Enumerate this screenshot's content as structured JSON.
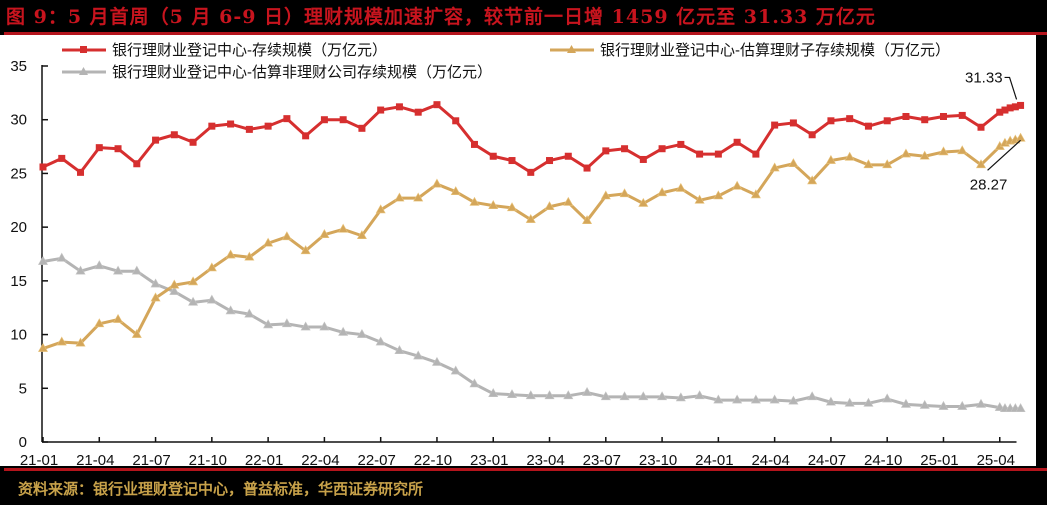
{
  "title": "图 9：5 月首周（5 月 6-9 日）理财规模加速扩容，较节前一日增 1459 亿元至 31.33 万亿元",
  "source": "资料来源：银行业理财登记中心，普益标准，华西证券研究所",
  "colors": {
    "title": "#c8141e",
    "rule": "#b4141c",
    "source": "#c8a24a",
    "series_total": "#d62f2f",
    "series_subsidiary": "#d4a65a",
    "series_non_subsidiary": "#b4b4b4"
  },
  "legend": [
    {
      "label": "银行理财业登记中心-存续规模（万亿元）",
      "marker": "square",
      "color": "#d62f2f"
    },
    {
      "label": "银行理财业登记中心-估算理财子存续规模（万亿元）",
      "marker": "triangle",
      "color": "#d4a65a"
    },
    {
      "label": "银行理财业登记中心-估算非理财公司存续规模（万亿元）",
      "marker": "triangle",
      "color": "#b4b4b4"
    }
  ],
  "annotations": [
    {
      "text": "31.33",
      "series": "total"
    },
    {
      "text": "28.27",
      "series": "subsidiary"
    }
  ],
  "chart_data": {
    "type": "line",
    "title": "图 9：5 月首周（5 月 6-9 日）理财规模加速扩容，较节前一日增 1459 亿元至 31.33 万亿元",
    "xlabel": "",
    "ylabel": "",
    "ylim": [
      0,
      35
    ],
    "yticks": [
      0,
      5,
      10,
      15,
      20,
      25,
      30,
      35
    ],
    "xtick_labels": [
      "21-01",
      "21-04",
      "21-07",
      "21-10",
      "22-01",
      "22-04",
      "22-07",
      "22-10",
      "23-01",
      "23-04",
      "23-07",
      "23-10",
      "24-01",
      "24-04",
      "24-07",
      "24-10",
      "25-01",
      "25-04"
    ],
    "grid": false,
    "legend_position": "top",
    "x": [
      "21-01",
      "21-02",
      "21-03",
      "21-04",
      "21-05",
      "21-06",
      "21-07",
      "21-08",
      "21-09",
      "21-10",
      "21-11",
      "21-12",
      "22-01",
      "22-02",
      "22-03",
      "22-04",
      "22-05",
      "22-06",
      "22-07",
      "22-08",
      "22-09",
      "22-10",
      "22-11",
      "22-12",
      "23-01",
      "23-02",
      "23-03",
      "23-04",
      "23-05",
      "23-06",
      "23-07",
      "23-08",
      "23-09",
      "23-10",
      "23-11",
      "23-12",
      "24-01",
      "24-02",
      "24-03",
      "24-04",
      "24-05",
      "24-06",
      "24-07",
      "24-08",
      "24-09",
      "24-10",
      "24-11",
      "24-12",
      "25-01",
      "25-02",
      "25-03",
      "25-04",
      "25-05-w1",
      "25-05-w2",
      "25-05-w3",
      "25-05-w4"
    ],
    "series": [
      {
        "name": "银行理财业登记中心-存续规模（万亿元）",
        "key": "total",
        "values": [
          25.6,
          26.4,
          25.1,
          27.4,
          27.3,
          25.9,
          28.1,
          28.6,
          27.9,
          29.4,
          29.6,
          29.1,
          29.4,
          30.1,
          28.5,
          30.0,
          30.0,
          29.2,
          30.9,
          31.2,
          30.7,
          31.4,
          29.9,
          27.7,
          26.6,
          26.2,
          25.1,
          26.2,
          26.6,
          25.5,
          27.1,
          27.3,
          26.3,
          27.3,
          27.7,
          26.8,
          26.8,
          27.9,
          26.8,
          29.5,
          29.7,
          28.6,
          29.9,
          30.1,
          29.4,
          29.9,
          30.3,
          30.0,
          30.3,
          30.4,
          29.3,
          30.7,
          30.9,
          31.1,
          31.2,
          31.33
        ]
      },
      {
        "name": "银行理财业登记中心-估算理财子存续规模（万亿元）",
        "key": "subsidiary",
        "values": [
          8.7,
          9.3,
          9.2,
          11.0,
          11.4,
          10.0,
          13.4,
          14.6,
          14.9,
          16.2,
          17.4,
          17.2,
          18.5,
          19.1,
          17.8,
          19.3,
          19.8,
          19.2,
          21.6,
          22.7,
          22.7,
          24.0,
          23.3,
          22.3,
          22.0,
          21.8,
          20.7,
          21.9,
          22.3,
          20.6,
          22.9,
          23.1,
          22.2,
          23.2,
          23.6,
          22.5,
          22.9,
          23.8,
          23.0,
          25.5,
          25.9,
          24.3,
          26.2,
          26.5,
          25.8,
          25.8,
          26.8,
          26.6,
          27.0,
          27.1,
          25.8,
          27.5,
          27.8,
          28.0,
          28.1,
          28.27
        ]
      },
      {
        "name": "银行理财业登记中心-估算非理财公司存续规模（万亿元）",
        "key": "non_subsidiary",
        "values": [
          16.8,
          17.1,
          15.9,
          16.4,
          15.9,
          15.9,
          14.7,
          14.0,
          13.0,
          13.2,
          12.2,
          11.9,
          10.9,
          11.0,
          10.7,
          10.7,
          10.2,
          10.0,
          9.3,
          8.5,
          8.0,
          7.4,
          6.6,
          5.4,
          4.5,
          4.4,
          4.3,
          4.3,
          4.3,
          4.6,
          4.2,
          4.2,
          4.2,
          4.2,
          4.1,
          4.3,
          3.9,
          3.9,
          3.9,
          3.9,
          3.8,
          4.2,
          3.7,
          3.6,
          3.6,
          4.0,
          3.5,
          3.4,
          3.3,
          3.3,
          3.5,
          3.2,
          3.1,
          3.1,
          3.1,
          3.1
        ]
      }
    ],
    "annotations": [
      {
        "text": "31.33",
        "series": "total",
        "point": "last"
      },
      {
        "text": "28.27",
        "series": "subsidiary",
        "point": "last"
      }
    ]
  }
}
